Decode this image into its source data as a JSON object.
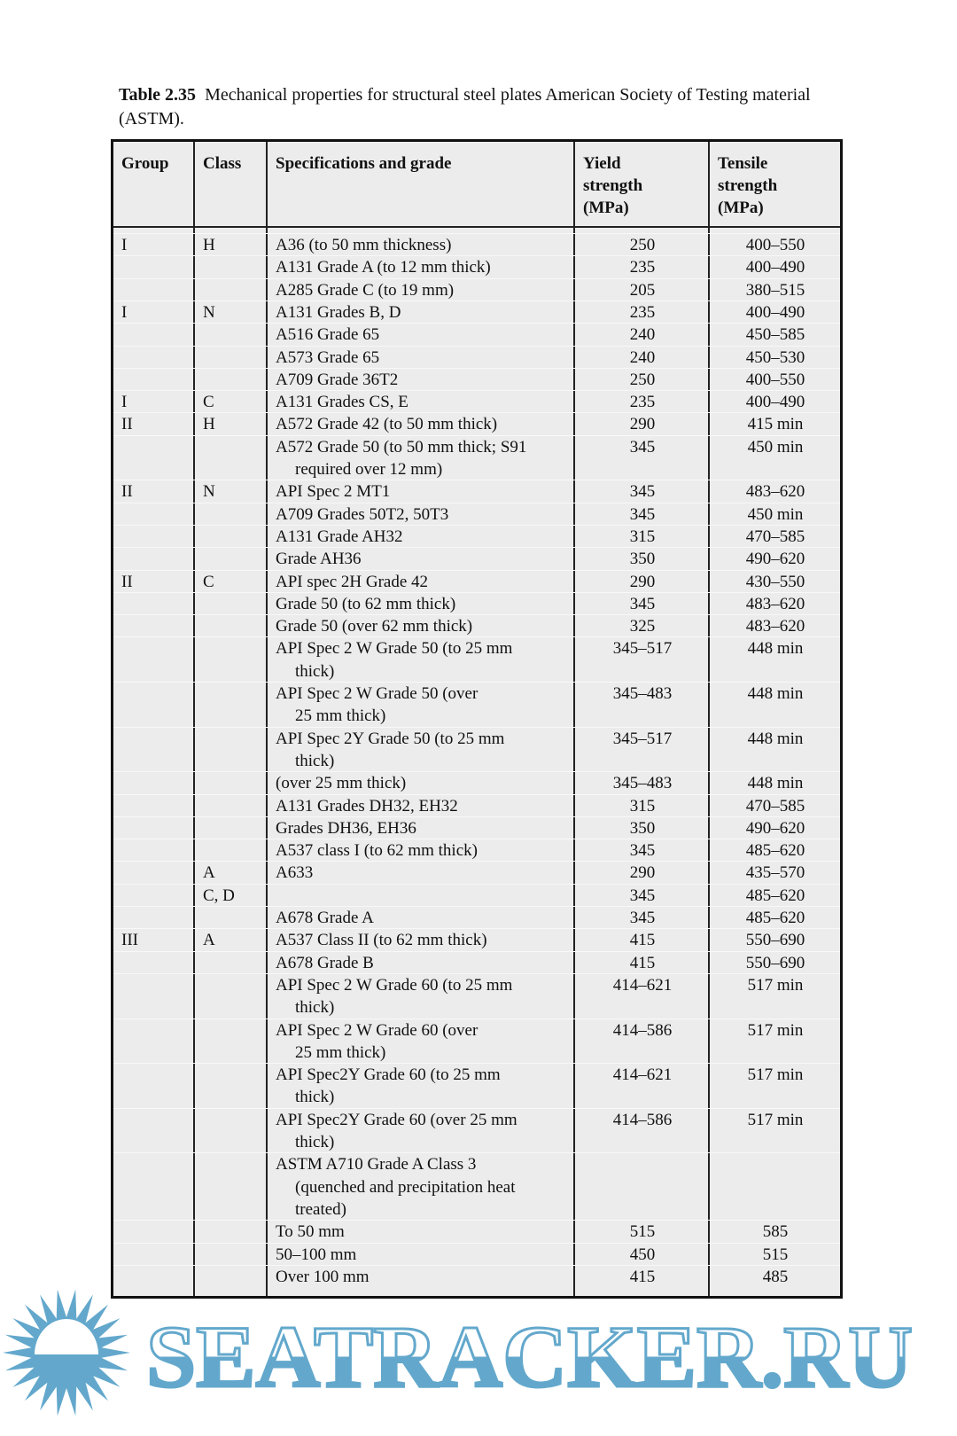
{
  "caption": {
    "label": "Table 2.35",
    "text": "Mechanical properties for structural steel plates American Society of Testing material (ASTM)."
  },
  "table": {
    "headers": {
      "group": "Group",
      "class": "Class",
      "spec": "Specifications and grade",
      "yield": [
        "Yield",
        "strength",
        "(MPa)"
      ],
      "tensile": [
        "Tensile",
        "strength",
        "(MPa)"
      ]
    },
    "rows": [
      {
        "group": "I",
        "class": "H",
        "spec": [
          "A36 (to 50 mm thickness)"
        ],
        "yield": "250",
        "tensile": "400–550"
      },
      {
        "group": "",
        "class": "",
        "spec": [
          "A131 Grade A (to 12 mm thick)"
        ],
        "yield": "235",
        "tensile": "400–490"
      },
      {
        "group": "",
        "class": "",
        "spec": [
          "A285 Grade C (to 19 mm)"
        ],
        "yield": "205",
        "tensile": "380–515"
      },
      {
        "group": "I",
        "class": "N",
        "spec": [
          "A131 Grades B, D"
        ],
        "yield": "235",
        "tensile": "400–490"
      },
      {
        "group": "",
        "class": "",
        "spec": [
          "A516 Grade 65"
        ],
        "yield": "240",
        "tensile": "450–585"
      },
      {
        "group": "",
        "class": "",
        "spec": [
          "A573 Grade 65"
        ],
        "yield": "240",
        "tensile": "450–530"
      },
      {
        "group": "",
        "class": "",
        "spec": [
          "A709 Grade 36T2"
        ],
        "yield": "250",
        "tensile": "400–550"
      },
      {
        "group": "I",
        "class": "C",
        "spec": [
          "A131 Grades CS, E"
        ],
        "yield": "235",
        "tensile": "400–490"
      },
      {
        "group": "II",
        "class": "H",
        "spec": [
          "A572 Grade 42 (to 50 mm thick)"
        ],
        "yield": "290",
        "tensile": "415 min"
      },
      {
        "group": "",
        "class": "",
        "spec": [
          "A572 Grade 50 (to 50 mm thick; S91",
          "required over 12 mm)"
        ],
        "yield": "345",
        "tensile": "450 min"
      },
      {
        "group": "II",
        "class": "N",
        "spec": [
          "API Spec 2 MT1"
        ],
        "yield": "345",
        "tensile": "483–620"
      },
      {
        "group": "",
        "class": "",
        "spec": [
          "A709 Grades 50T2, 50T3"
        ],
        "yield": "345",
        "tensile": "450 min"
      },
      {
        "group": "",
        "class": "",
        "spec": [
          "A131 Grade AH32"
        ],
        "yield": "315",
        "tensile": "470–585"
      },
      {
        "group": "",
        "class": "",
        "spec": [
          "Grade AH36"
        ],
        "yield": "350",
        "tensile": "490–620"
      },
      {
        "group": "II",
        "class": "C",
        "spec": [
          "API spec 2H Grade 42"
        ],
        "yield": "290",
        "tensile": "430–550"
      },
      {
        "group": "",
        "class": "",
        "spec": [
          "Grade 50 (to 62 mm thick)"
        ],
        "yield": "345",
        "tensile": "483–620"
      },
      {
        "group": "",
        "class": "",
        "spec": [
          "Grade 50 (over 62 mm thick)"
        ],
        "yield": "325",
        "tensile": "483–620"
      },
      {
        "group": "",
        "class": "",
        "spec": [
          "API Spec 2 W Grade 50 (to 25 mm",
          "thick)"
        ],
        "yield": "345–517",
        "tensile": "448 min"
      },
      {
        "group": "",
        "class": "",
        "spec": [
          "API Spec 2 W Grade 50 (over",
          "25 mm thick)"
        ],
        "yield": "345–483",
        "tensile": "448 min"
      },
      {
        "group": "",
        "class": "",
        "spec": [
          "API Spec 2Y Grade 50 (to 25 mm",
          "thick)"
        ],
        "yield": "345–517",
        "tensile": "448 min"
      },
      {
        "group": "",
        "class": "",
        "spec": [
          "(over 25 mm thick)"
        ],
        "yield": "345–483",
        "tensile": "448 min"
      },
      {
        "group": "",
        "class": "",
        "spec": [
          "A131 Grades DH32, EH32"
        ],
        "yield": "315",
        "tensile": "470–585"
      },
      {
        "group": "",
        "class": "",
        "spec": [
          "Grades DH36, EH36"
        ],
        "yield": "350",
        "tensile": "490–620"
      },
      {
        "group": "",
        "class": "",
        "spec": [
          "A537 class I (to 62 mm thick)"
        ],
        "yield": "345",
        "tensile": "485–620"
      },
      {
        "group": "",
        "class": "A",
        "spec": [
          "A633"
        ],
        "yield": "290",
        "tensile": "435–570"
      },
      {
        "group": "",
        "class": "C, D",
        "spec": [
          ""
        ],
        "yield": "345",
        "tensile": "485–620"
      },
      {
        "group": "",
        "class": "",
        "spec": [
          "A678 Grade A"
        ],
        "yield": "345",
        "tensile": "485–620"
      },
      {
        "group": "III",
        "class": "A",
        "spec": [
          "A537 Class II (to 62 mm thick)"
        ],
        "yield": "415",
        "tensile": "550–690"
      },
      {
        "group": "",
        "class": "",
        "spec": [
          "A678 Grade B"
        ],
        "yield": "415",
        "tensile": "550–690"
      },
      {
        "group": "",
        "class": "",
        "spec": [
          "API Spec 2 W Grade 60 (to 25 mm",
          "thick)"
        ],
        "yield": "414–621",
        "tensile": "517 min"
      },
      {
        "group": "",
        "class": "",
        "spec": [
          "API Spec 2 W Grade 60 (over",
          "25 mm thick)"
        ],
        "yield": "414–586",
        "tensile": "517 min"
      },
      {
        "group": "",
        "class": "",
        "spec": [
          "API Spec2Y Grade 60 (to 25 mm",
          "thick)"
        ],
        "yield": "414–621",
        "tensile": "517 min"
      },
      {
        "group": "",
        "class": "",
        "spec": [
          "API Spec2Y Grade 60 (over 25 mm",
          "thick)"
        ],
        "yield": "414–586",
        "tensile": "517 min"
      },
      {
        "group": "",
        "class": "",
        "spec": [
          "ASTM A710 Grade A Class 3",
          "(quenched and precipitation heat",
          "treated)"
        ],
        "yield": "",
        "tensile": ""
      },
      {
        "group": "",
        "class": "",
        "spec": [
          "To 50 mm"
        ],
        "yield": "515",
        "tensile": "585"
      },
      {
        "group": "",
        "class": "",
        "spec": [
          "50–100 mm"
        ],
        "yield": "450",
        "tensile": "515"
      },
      {
        "group": "",
        "class": "",
        "spec": [
          "Over 100 mm"
        ],
        "yield": "415",
        "tensile": "485"
      }
    ]
  },
  "watermark": {
    "text": "SEATRACKER.RU",
    "color": "#63a8cc",
    "icon": "sun-icon"
  },
  "colors": {
    "table_bg": "#ececec",
    "border": "#111111"
  }
}
